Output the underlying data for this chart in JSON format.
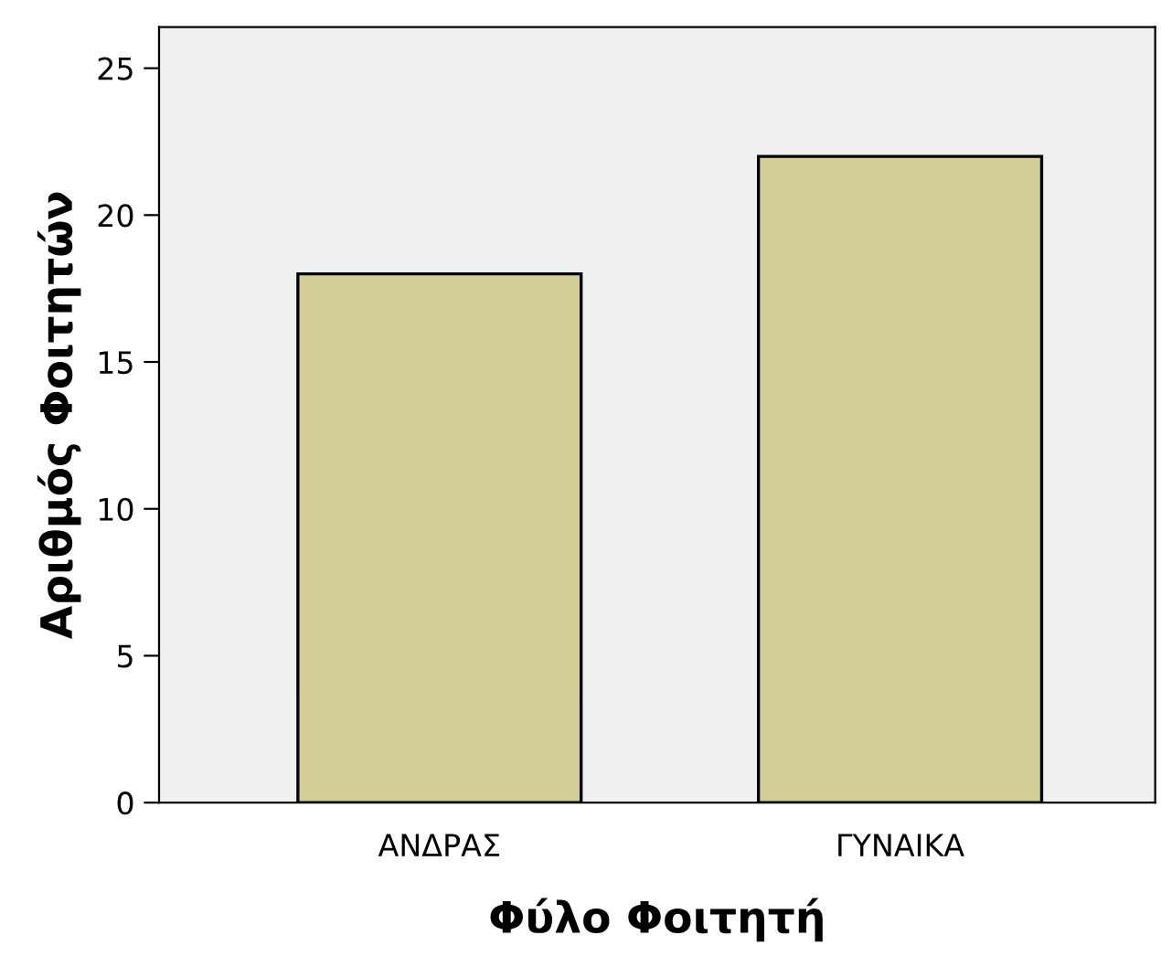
{
  "chart_data": {
    "type": "bar",
    "xlabel": "Φύλο Φοιτητή",
    "ylabel": "Αριθμός Φοιτητών",
    "categories": [
      "ΑΝΔΡΑΣ",
      "ΓΥΝΑΙΚΑ"
    ],
    "values": [
      18,
      22
    ],
    "color": "#d3ce97",
    "ylim": [
      0,
      26.4
    ],
    "yticks": [
      0,
      5,
      10,
      15,
      20,
      25
    ],
    "grid": false
  }
}
